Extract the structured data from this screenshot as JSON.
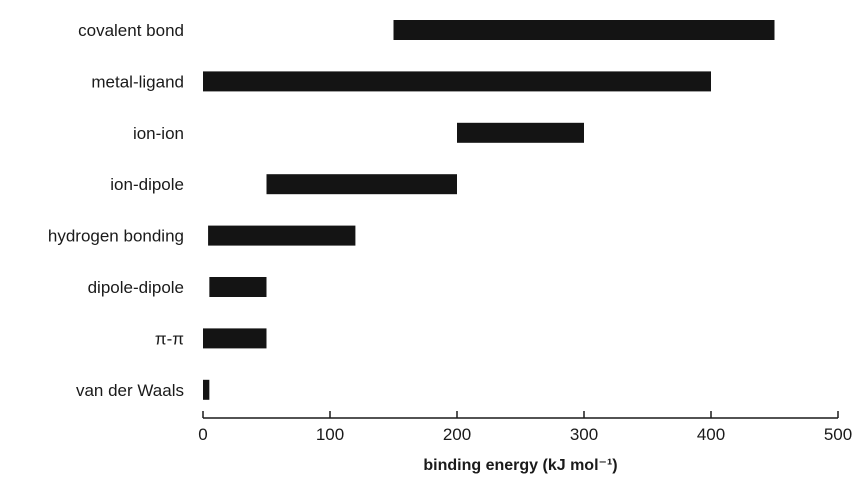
{
  "chart_data": {
    "type": "bar",
    "orientation": "horizontal",
    "categories": [
      "covalent bond",
      "metal-ligand",
      "ion-ion",
      "ion-dipole",
      "hydrogen bonding",
      "dipole-dipole",
      "π-π",
      "van der Waals"
    ],
    "ranges": [
      [
        150,
        450
      ],
      [
        0,
        400
      ],
      [
        200,
        300
      ],
      [
        50,
        200
      ],
      [
        4,
        120
      ],
      [
        5,
        50
      ],
      [
        0,
        50
      ],
      [
        0,
        5
      ]
    ],
    "xlabel": "binding energy (kJ mol⁻¹)",
    "ylabel": "",
    "title": "",
    "xlim": [
      0,
      500
    ],
    "xticks": [
      0,
      100,
      200,
      300,
      400,
      500
    ],
    "xtick_labels": [
      "0",
      "100",
      "200",
      "300",
      "400",
      "500"
    ],
    "grid": false,
    "legend": "none",
    "bar_color": "#141414"
  }
}
